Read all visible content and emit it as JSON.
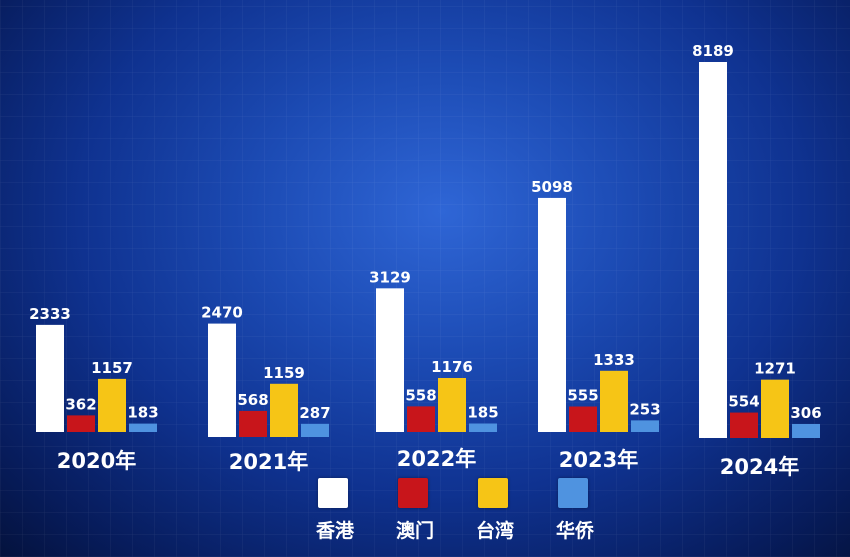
{
  "chart_data": {
    "type": "bar",
    "categories": [
      "2020年",
      "2021年",
      "2022年",
      "2023年",
      "2024年"
    ],
    "series": [
      {
        "name": "香港",
        "color": "#ffffff",
        "values": [
          2333,
          2470,
          3129,
          5098,
          8189
        ]
      },
      {
        "name": "澳门",
        "color": "#c8151b",
        "values": [
          362,
          568,
          558,
          555,
          554
        ]
      },
      {
        "name": "台湾",
        "color": "#f6c516",
        "values": [
          1157,
          1159,
          1176,
          1333,
          1271
        ]
      },
      {
        "name": "华侨",
        "color": "#4f93e0",
        "values": [
          183,
          287,
          185,
          253,
          306
        ]
      }
    ],
    "legend_position": "bottom-center",
    "grid": false
  }
}
